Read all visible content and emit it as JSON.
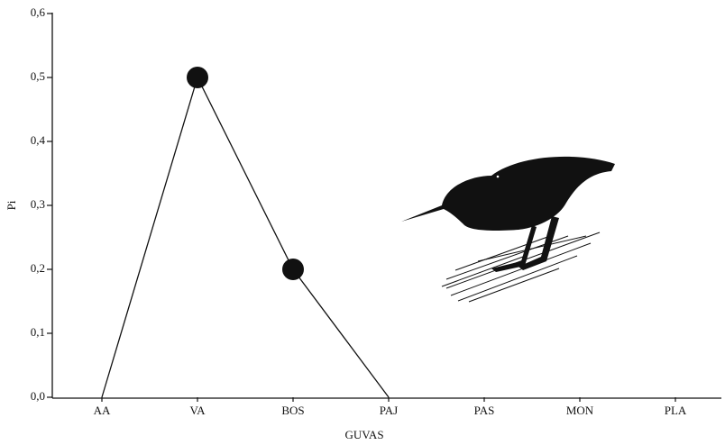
{
  "chart_data": {
    "type": "line",
    "x_label": "GUVAS",
    "y_label": "Pi",
    "categories": [
      "AA",
      "VA",
      "BOS",
      "PAJ",
      "PAS",
      "MON",
      "PLA"
    ],
    "values": [
      0,
      0.5,
      0.2,
      0,
      null,
      null,
      null
    ],
    "color": "#111111",
    "ylim": [
      0,
      0.6
    ],
    "yticks": [
      {
        "value": 0,
        "label": "0,0"
      },
      {
        "value": 0.1,
        "label": "0,1"
      },
      {
        "value": 0.2,
        "label": "0,2"
      },
      {
        "value": 0.3,
        "label": "0,3"
      },
      {
        "value": 0.4,
        "label": "0,4"
      },
      {
        "value": 0.5,
        "label": "0,5"
      },
      {
        "value": 0.6,
        "label": "0,6"
      }
    ],
    "grid": false
  }
}
